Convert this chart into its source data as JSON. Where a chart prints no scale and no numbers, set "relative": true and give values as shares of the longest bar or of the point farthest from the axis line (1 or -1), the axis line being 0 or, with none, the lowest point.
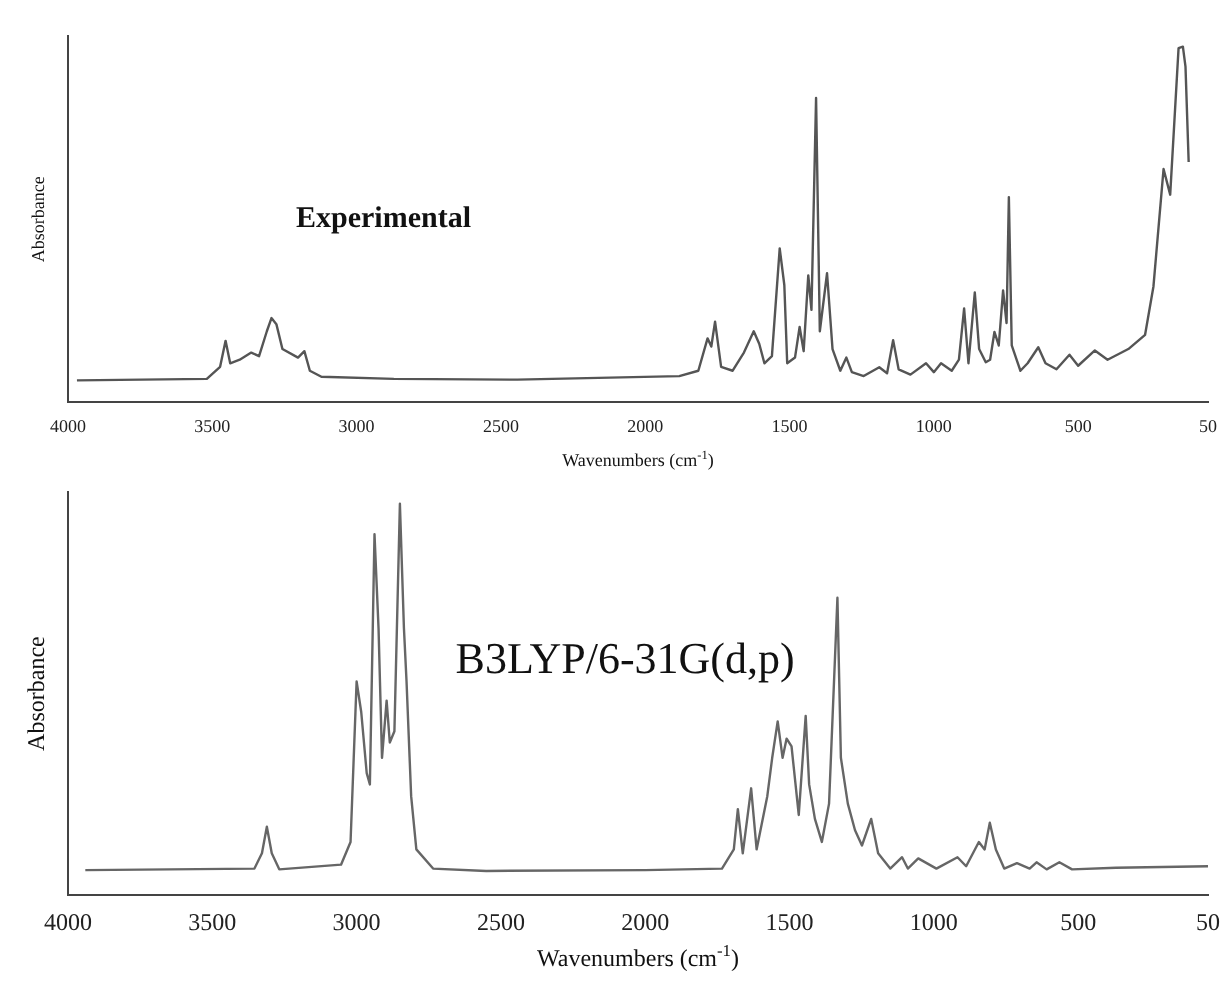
{
  "chart_data": [
    {
      "type": "line",
      "relative": true,
      "xlabel": "Wavenumbers (cm$^{-1}$)",
      "ylabel": "Absorbance",
      "annotations": [
        "Experimental"
      ],
      "xlim": [
        4000,
        50
      ],
      "xticks": [
        4000,
        3500,
        3000,
        2500,
        2000,
        1500,
        1000,
        500,
        50
      ],
      "tick_labels": "x",
      "grid": false,
      "legend": false,
      "marker": "none",
      "line_style": "solid",
      "series": [
        {
          "color": "#555555",
          "x": [
            3969,
            3519,
            3473,
            3454,
            3438,
            3405,
            3365,
            3338,
            3311,
            3295,
            3278,
            3257,
            3203,
            3181,
            3162,
            3122,
            2871,
            2443,
            1882,
            1816,
            1784,
            1771,
            1758,
            1737,
            1697,
            1658,
            1624,
            1605,
            1587,
            1561,
            1534,
            1518,
            1508,
            1481,
            1465,
            1451,
            1435,
            1424,
            1408,
            1395,
            1370,
            1351,
            1324,
            1303,
            1284,
            1243,
            1189,
            1162,
            1141,
            1122,
            1081,
            1027,
            1000,
            975,
            938,
            913,
            895,
            880,
            858,
            843,
            820,
            805,
            790,
            775,
            760,
            748,
            740,
            730,
            700,
            675,
            638,
            613,
            575,
            530,
            500,
            442,
            398,
            326,
            268,
            239,
            204,
            181,
            152,
            137,
            128,
            117
          ],
          "values": [
            0.062,
            0.066,
            0.1,
            0.173,
            0.11,
            0.12,
            0.14,
            0.13,
            0.2,
            0.237,
            0.22,
            0.15,
            0.126,
            0.144,
            0.089,
            0.072,
            0.066,
            0.064,
            0.074,
            0.089,
            0.18,
            0.157,
            0.227,
            0.1,
            0.089,
            0.14,
            0.2,
            0.165,
            0.11,
            0.13,
            0.433,
            0.33,
            0.11,
            0.126,
            0.212,
            0.144,
            0.357,
            0.26,
            0.856,
            0.2,
            0.363,
            0.15,
            0.089,
            0.126,
            0.085,
            0.074,
            0.099,
            0.082,
            0.175,
            0.093,
            0.078,
            0.11,
            0.085,
            0.11,
            0.089,
            0.12,
            0.264,
            0.11,
            0.309,
            0.15,
            0.113,
            0.12,
            0.198,
            0.16,
            0.315,
            0.223,
            0.577,
            0.16,
            0.089,
            0.11,
            0.155,
            0.11,
            0.093,
            0.134,
            0.103,
            0.146,
            0.12,
            0.15,
            0.19,
            0.326,
            0.656,
            0.584,
            0.996,
            1.0,
            0.944,
            0.676
          ]
        }
      ]
    },
    {
      "type": "line",
      "relative": true,
      "xlabel": "Wavenumbers (cm$^{-1}$)",
      "ylabel": "Absorbance",
      "annotations": [
        "B3LYP/6-31G(d,p)"
      ],
      "xlim": [
        4000,
        50
      ],
      "xticks": [
        4000,
        3500,
        3000,
        2500,
        2000,
        1500,
        1000,
        500,
        50
      ],
      "tick_labels": "x",
      "grid": false,
      "legend": false,
      "marker": "none",
      "line_style": "solid",
      "series": [
        {
          "color": "#666666",
          "x": [
            3940,
            3354,
            3328,
            3311,
            3294,
            3268,
            3054,
            3021,
            3000,
            2984,
            2965,
            2954,
            2938,
            2924,
            2912,
            2896,
            2885,
            2869,
            2850,
            2836,
            2827,
            2811,
            2793,
            2735,
            2551,
            2000,
            1734,
            1693,
            1679,
            1662,
            1633,
            1614,
            1577,
            1560,
            1541,
            1524,
            1510,
            1493,
            1468,
            1444,
            1432,
            1412,
            1388,
            1363,
            1334,
            1322,
            1298,
            1273,
            1249,
            1217,
            1193,
            1151,
            1110,
            1090,
            1054,
            991,
            918,
            888,
            844,
            824,
            806,
            785,
            756,
            712,
            668,
            644,
            609,
            565,
            521,
            369,
            50
          ],
          "values": [
            0.064,
            0.068,
            0.107,
            0.175,
            0.107,
            0.066,
            0.078,
            0.136,
            0.546,
            0.468,
            0.312,
            0.283,
            0.922,
            0.682,
            0.351,
            0.497,
            0.39,
            0.419,
            1.0,
            0.682,
            0.546,
            0.253,
            0.117,
            0.068,
            0.062,
            0.064,
            0.068,
            0.117,
            0.22,
            0.107,
            0.273,
            0.117,
            0.253,
            0.351,
            0.444,
            0.351,
            0.4,
            0.38,
            0.205,
            0.458,
            0.283,
            0.195,
            0.136,
            0.234,
            0.76,
            0.351,
            0.234,
            0.166,
            0.127,
            0.195,
            0.107,
            0.068,
            0.097,
            0.068,
            0.094,
            0.068,
            0.097,
            0.074,
            0.136,
            0.117,
            0.185,
            0.117,
            0.068,
            0.082,
            0.068,
            0.084,
            0.066,
            0.084,
            0.066,
            0.07,
            0.074
          ]
        }
      ]
    }
  ]
}
